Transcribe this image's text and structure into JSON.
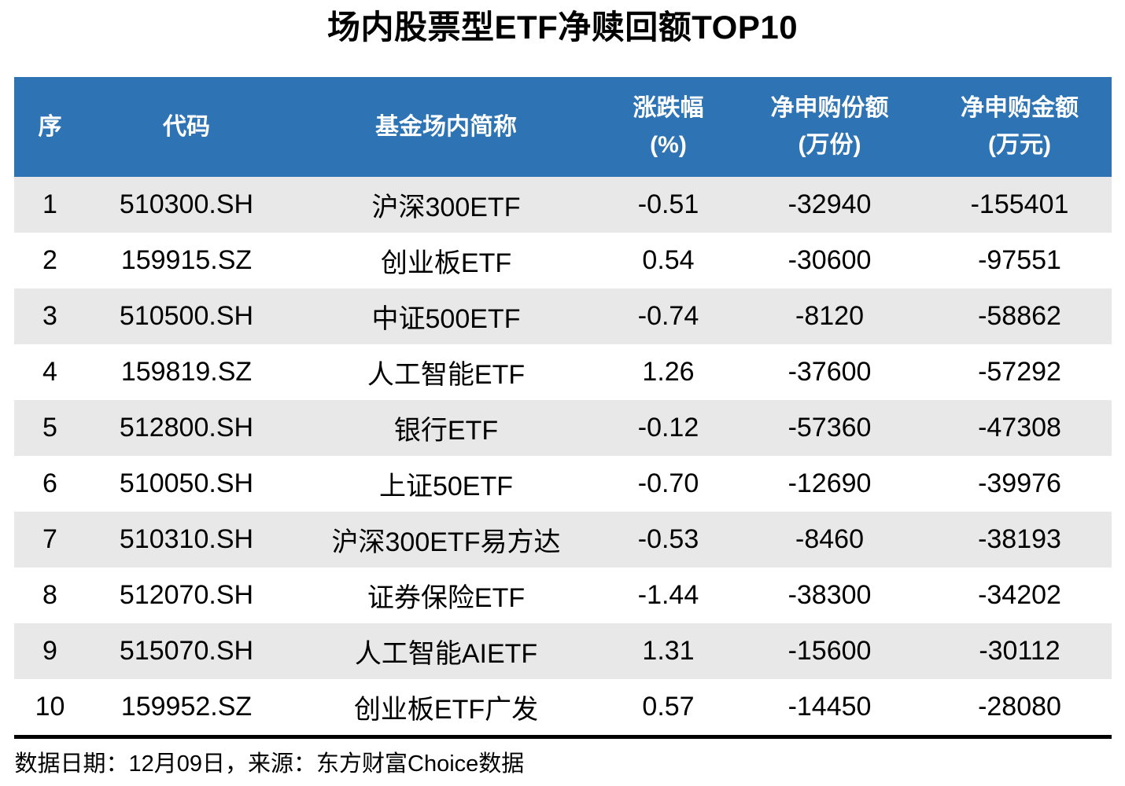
{
  "title": "场内股票型ETF净赎回额TOP10",
  "colors": {
    "header_background": "#2E74B5",
    "header_text": "#FFFFFF",
    "stripe_row_background": "#E8E8E8",
    "body_text": "#000000"
  },
  "chart_data": {
    "type": "table",
    "title": "场内股票型ETF净赎回额TOP10",
    "columns": [
      {
        "label": "序",
        "unit": ""
      },
      {
        "label": "代码",
        "unit": ""
      },
      {
        "label": "基金场内简称",
        "unit": ""
      },
      {
        "label": "涨跌幅",
        "unit": "(%)"
      },
      {
        "label": "净申购份额",
        "unit": "(万份)"
      },
      {
        "label": "净申购金额",
        "unit": "(万元)"
      }
    ],
    "rows": [
      {
        "no": "1",
        "code": "510300.SH",
        "name": "沪深300ETF",
        "change_pct": "-0.51",
        "net_shares": "-32940",
        "net_amount": "-155401"
      },
      {
        "no": "2",
        "code": "159915.SZ",
        "name": "创业板ETF",
        "change_pct": "0.54",
        "net_shares": "-30600",
        "net_amount": "-97551"
      },
      {
        "no": "3",
        "code": "510500.SH",
        "name": "中证500ETF",
        "change_pct": "-0.74",
        "net_shares": "-8120",
        "net_amount": "-58862"
      },
      {
        "no": "4",
        "code": "159819.SZ",
        "name": "人工智能ETF",
        "change_pct": "1.26",
        "net_shares": "-37600",
        "net_amount": "-57292"
      },
      {
        "no": "5",
        "code": "512800.SH",
        "name": "银行ETF",
        "change_pct": "-0.12",
        "net_shares": "-57360",
        "net_amount": "-47308"
      },
      {
        "no": "6",
        "code": "510050.SH",
        "name": "上证50ETF",
        "change_pct": "-0.70",
        "net_shares": "-12690",
        "net_amount": "-39976"
      },
      {
        "no": "7",
        "code": "510310.SH",
        "name": "沪深300ETF易方达",
        "change_pct": "-0.53",
        "net_shares": "-8460",
        "net_amount": "-38193"
      },
      {
        "no": "8",
        "code": "512070.SH",
        "name": "证券保险ETF",
        "change_pct": "-1.44",
        "net_shares": "-38300",
        "net_amount": "-34202"
      },
      {
        "no": "9",
        "code": "515070.SH",
        "name": "人工智能AIETF",
        "change_pct": "1.31",
        "net_shares": "-15600",
        "net_amount": "-30112"
      },
      {
        "no": "10",
        "code": "159952.SZ",
        "name": "创业板ETF广发",
        "change_pct": "0.57",
        "net_shares": "-14450",
        "net_amount": "-28080"
      }
    ]
  },
  "footer": {
    "text": "数据日期：12月09日，来源：东方财富Choice数据"
  }
}
